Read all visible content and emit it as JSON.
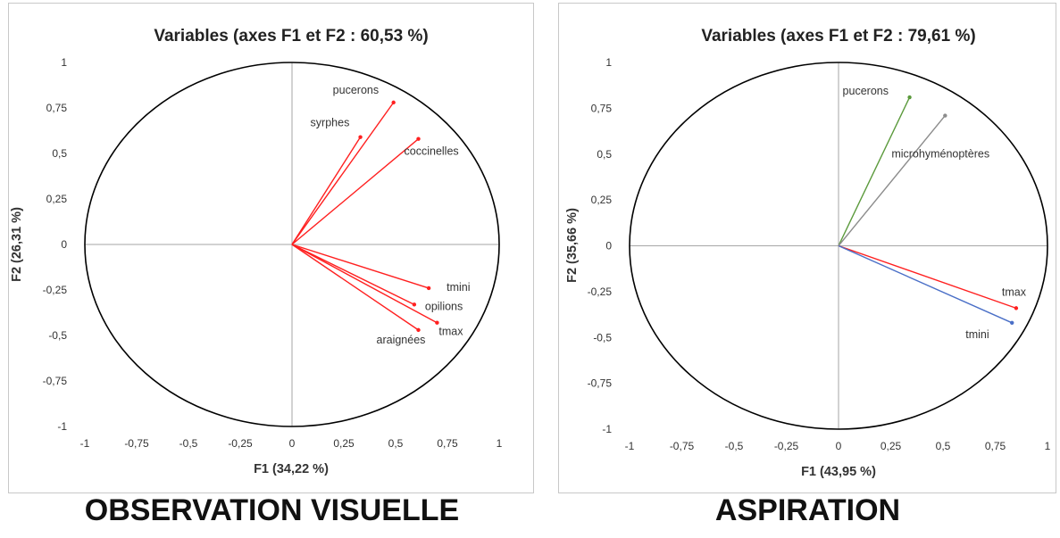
{
  "chart_data": [
    {
      "type": "scatter",
      "subtype": "correlation-circle",
      "title": "Variables (axes F1 et F2 : 60,53 %)",
      "xlabel": "F1 (34,22 %)",
      "ylabel": "F2 (26,31 %)",
      "xlim": [
        -1,
        1
      ],
      "ylim": [
        -1,
        1
      ],
      "xticks": [
        "-1",
        "-0,75",
        "-0,5",
        "-0,25",
        "0",
        "0,25",
        "0,5",
        "0,75",
        "1"
      ],
      "yticks": [
        "1",
        "0,75",
        "0,5",
        "0,25",
        "0",
        "-0,25",
        "-0,5",
        "-0,75",
        "-1"
      ],
      "grid": false,
      "caption": "OBSERVATION VISUELLE",
      "series": [
        {
          "label": "syrphes",
          "x": 0.33,
          "y": 0.59,
          "color": "#ff2020"
        },
        {
          "label": "pucerons",
          "x": 0.49,
          "y": 0.78,
          "color": "#ff2020"
        },
        {
          "label": "coccinelles",
          "x": 0.61,
          "y": 0.58,
          "color": "#ff2020"
        },
        {
          "label": "tmini",
          "x": 0.66,
          "y": -0.24,
          "color": "#ff2020"
        },
        {
          "label": "opilions",
          "x": 0.59,
          "y": -0.33,
          "color": "#ff2020"
        },
        {
          "label": "tmax",
          "x": 0.7,
          "y": -0.43,
          "color": "#ff2020"
        },
        {
          "label": "araignées",
          "x": 0.61,
          "y": -0.47,
          "color": "#ff2020"
        }
      ]
    },
    {
      "type": "scatter",
      "subtype": "correlation-circle",
      "title": "Variables (axes F1 et F2 : 79,61 %)",
      "xlabel": "F1 (43,95 %)",
      "ylabel": "F2 (35,66 %)",
      "xlim": [
        -1,
        1
      ],
      "ylim": [
        -1,
        1
      ],
      "xticks": [
        "-1",
        "-0,75",
        "-0,5",
        "-0,25",
        "0",
        "0,25",
        "0,5",
        "0,75",
        "1"
      ],
      "yticks": [
        "1",
        "0,75",
        "0,5",
        "0,25",
        "0",
        "-0,25",
        "-0,5",
        "-0,75",
        "-1"
      ],
      "grid": false,
      "caption": "ASPIRATION",
      "series": [
        {
          "label": "pucerons",
          "x": 0.34,
          "y": 0.81,
          "color": "#5b9a3c"
        },
        {
          "label": "microhyménoptères",
          "x": 0.51,
          "y": 0.71,
          "color": "#8c8c8c"
        },
        {
          "label": "tmax",
          "x": 0.85,
          "y": -0.34,
          "color": "#ff2020"
        },
        {
          "label": "tmini",
          "x": 0.83,
          "y": -0.42,
          "color": "#4a6fc7"
        }
      ]
    }
  ]
}
